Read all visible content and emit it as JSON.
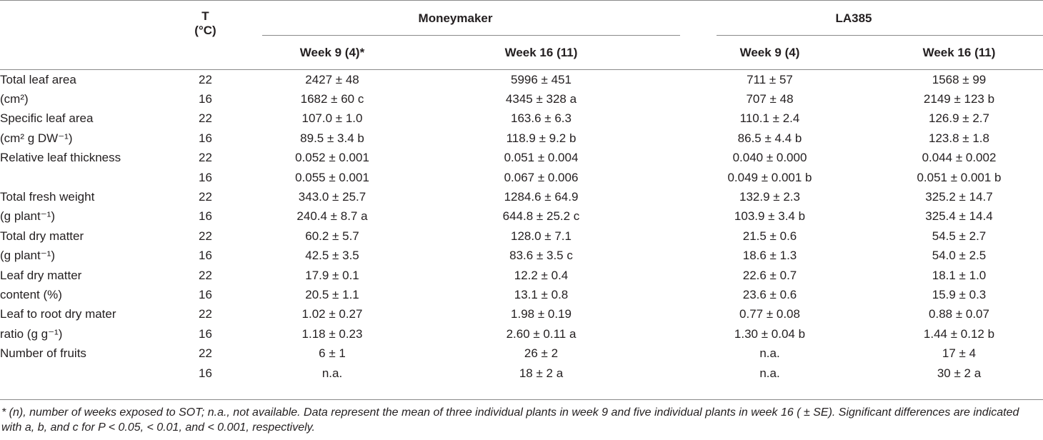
{
  "header": {
    "temp_label_line1": "T",
    "temp_label_line2": "(°C)",
    "group1": "Moneymaker",
    "group2": "LA385",
    "g1_week9": "Week 9 (4)*",
    "g1_week16": "Week 16 (11)",
    "g2_week9": "Week 9 (4)",
    "g2_week16": "Week 16 (11)"
  },
  "rows": [
    {
      "label": "Total leaf area",
      "t": "22",
      "mm_w9": "2427 ± 48",
      "mm_w16": "5996 ± 451",
      "la_w9": "711 ± 57",
      "la_w16": "1568 ± 99"
    },
    {
      "label": "(cm²)",
      "t": "16",
      "mm_w9": "1682 ± 60 c",
      "mm_w16": "4345 ± 328 a",
      "la_w9": "707 ± 48",
      "la_w16": "2149 ± 123 b"
    },
    {
      "label": "Specific leaf area",
      "t": "22",
      "mm_w9": "107.0 ± 1.0",
      "mm_w16": "163.6 ± 6.3",
      "la_w9": "110.1 ± 2.4",
      "la_w16": "126.9 ± 2.7"
    },
    {
      "label": "(cm² g DW⁻¹)",
      "t": "16",
      "mm_w9": "89.5 ± 3.4 b",
      "mm_w16": "118.9 ± 9.2 b",
      "la_w9": "86.5 ± 4.4 b",
      "la_w16": "123.8 ± 1.8"
    },
    {
      "label": "Relative leaf thickness",
      "t": "22",
      "mm_w9": "0.052 ± 0.001",
      "mm_w16": "0.051 ± 0.004",
      "la_w9": "0.040 ± 0.000",
      "la_w16": "0.044 ± 0.002"
    },
    {
      "label": "",
      "t": "16",
      "mm_w9": "0.055 ± 0.001",
      "mm_w16": "0.067 ± 0.006",
      "la_w9": "0.049 ± 0.001 b",
      "la_w16": "0.051 ± 0.001 b"
    },
    {
      "label": "Total fresh weight",
      "t": "22",
      "mm_w9": "343.0 ± 25.7",
      "mm_w16": "1284.6 ± 64.9",
      "la_w9": "132.9 ± 2.3",
      "la_w16": "325.2 ± 14.7"
    },
    {
      "label": "(g plant⁻¹)",
      "t": "16",
      "mm_w9": "240.4 ± 8.7 a",
      "mm_w16": "644.8 ± 25.2 c",
      "la_w9": "103.9 ± 3.4 b",
      "la_w16": "325.4 ± 14.4"
    },
    {
      "label": "Total dry matter",
      "t": "22",
      "mm_w9": "60.2 ± 5.7",
      "mm_w16": "128.0 ± 7.1",
      "la_w9": "21.5 ± 0.6",
      "la_w16": "54.5 ± 2.7"
    },
    {
      "label": "(g plant⁻¹)",
      "t": "16",
      "mm_w9": "42.5 ± 3.5",
      "mm_w16": "83.6 ± 3.5 c",
      "la_w9": "18.6 ± 1.3",
      "la_w16": "54.0 ± 2.5"
    },
    {
      "label": "Leaf dry matter",
      "t": "22",
      "mm_w9": "17.9 ± 0.1",
      "mm_w16": "12.2 ± 0.4",
      "la_w9": "22.6 ± 0.7",
      "la_w16": "18.1 ± 1.0"
    },
    {
      "label": "content (%)",
      "t": "16",
      "mm_w9": "20.5 ± 1.1",
      "mm_w16": "13.1 ± 0.8",
      "la_w9": "23.6 ± 0.6",
      "la_w16": "15.9 ± 0.3"
    },
    {
      "label": "Leaf to root dry mater",
      "t": "22",
      "mm_w9": "1.02 ± 0.27",
      "mm_w16": "1.98 ± 0.19",
      "la_w9": "0.77 ± 0.08",
      "la_w16": "0.88 ± 0.07"
    },
    {
      "label": "ratio (g g⁻¹)",
      "t": "16",
      "mm_w9": "1.18 ± 0.23",
      "mm_w16": "2.60 ± 0.11 a",
      "la_w9": "1.30 ± 0.04 b",
      "la_w16": "1.44 ± 0.12 b"
    },
    {
      "label": "Number of fruits",
      "t": "22",
      "mm_w9": "6 ± 1",
      "mm_w16": "26 ± 2",
      "la_w9": "n.a.",
      "la_w16": "17 ± 4"
    },
    {
      "label": "",
      "t": "16",
      "mm_w9": "n.a.",
      "mm_w16": "18 ± 2 a",
      "la_w9": "n.a.",
      "la_w16": "30 ± 2 a"
    }
  ],
  "footnote": "* (n), number of weeks exposed to SOT; n.a., not available. Data represent the mean of three individual plants in week 9 and five individual plants in week 16 ( ± SE). Significant differences are indicated with a, b, and c for P < 0.05, < 0.01, and < 0.001, respectively."
}
